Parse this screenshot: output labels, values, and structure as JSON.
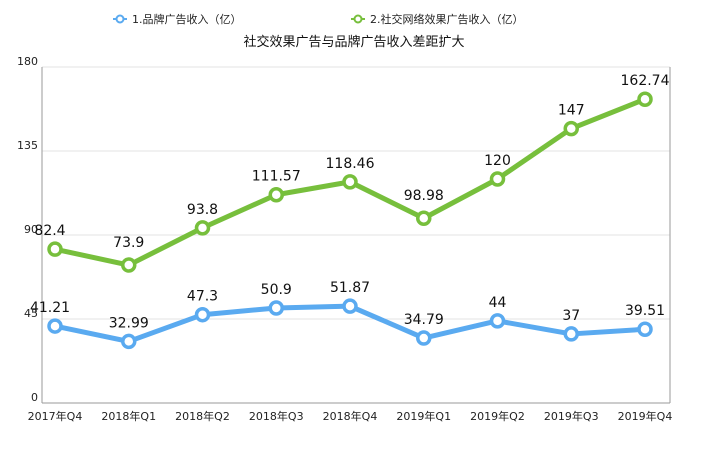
{
  "chart_data": {
    "type": "line",
    "title": "社交效果广告与品牌广告收入差距扩大",
    "categories": [
      "2017年Q4",
      "2018年Q1",
      "2018年Q2",
      "2018年Q3",
      "2018年Q4",
      "2019年Q1",
      "2019年Q2",
      "2019年Q3",
      "2019年Q4"
    ],
    "ylim": [
      0,
      180
    ],
    "yticks": [
      0,
      45,
      90,
      135,
      180
    ],
    "grid": true,
    "legend_position": "top",
    "series": [
      {
        "name": "1.品牌广告收入（亿）",
        "color": "#5aaaf0",
        "values": [
          41.21,
          32.99,
          47.3,
          50.9,
          51.87,
          34.79,
          44,
          37,
          39.51
        ],
        "labels": [
          "41.21",
          "32.99",
          "47.3",
          "50.9",
          "51.87",
          "34.79",
          "44",
          "37",
          "39.51"
        ]
      },
      {
        "name": "2.社交网络效果广告收入（亿）",
        "color": "#77bf3c",
        "values": [
          82.4,
          73.9,
          93.8,
          111.57,
          118.46,
          98.98,
          120,
          147,
          162.74
        ],
        "labels": [
          "82.4",
          "73.9",
          "93.8",
          "111.57",
          "118.46",
          "98.98",
          "120",
          "147",
          "162.74"
        ]
      }
    ]
  }
}
